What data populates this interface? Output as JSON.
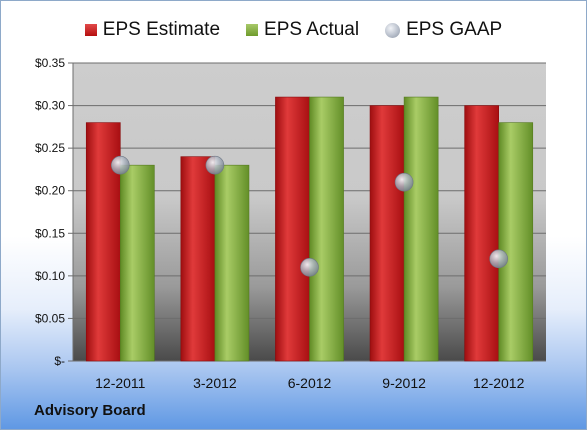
{
  "chart_data": {
    "type": "bar",
    "categories": [
      "12-2011",
      "3-2012",
      "6-2012",
      "9-2012",
      "12-2012"
    ],
    "series": [
      {
        "name": "EPS Estimate",
        "values": [
          0.28,
          0.24,
          0.31,
          0.3,
          0.3
        ],
        "color": "#c9181c"
      },
      {
        "name": "EPS Actual",
        "values": [
          0.23,
          0.23,
          0.31,
          0.31,
          0.28
        ],
        "color": "#8db24a"
      },
      {
        "name": "EPS GAAP",
        "marker": "sphere",
        "values": [
          0.23,
          0.23,
          0.11,
          0.21,
          0.12
        ],
        "color": "#9aa3b2"
      }
    ],
    "ylim": [
      0,
      0.35
    ],
    "yticks": [
      0,
      0.05,
      0.1,
      0.15,
      0.2,
      0.25,
      0.3,
      0.35
    ],
    "ytick_labels": [
      "$-",
      "$0.05",
      "$0.10",
      "$0.15",
      "$0.20",
      "$0.25",
      "$0.30",
      "$0.35"
    ],
    "grid": true,
    "legend_position": "top"
  },
  "source_label": "Advisory Board",
  "colors": {
    "plot_background": "#c8c8c8",
    "background_bottom": "#5f98e4"
  }
}
